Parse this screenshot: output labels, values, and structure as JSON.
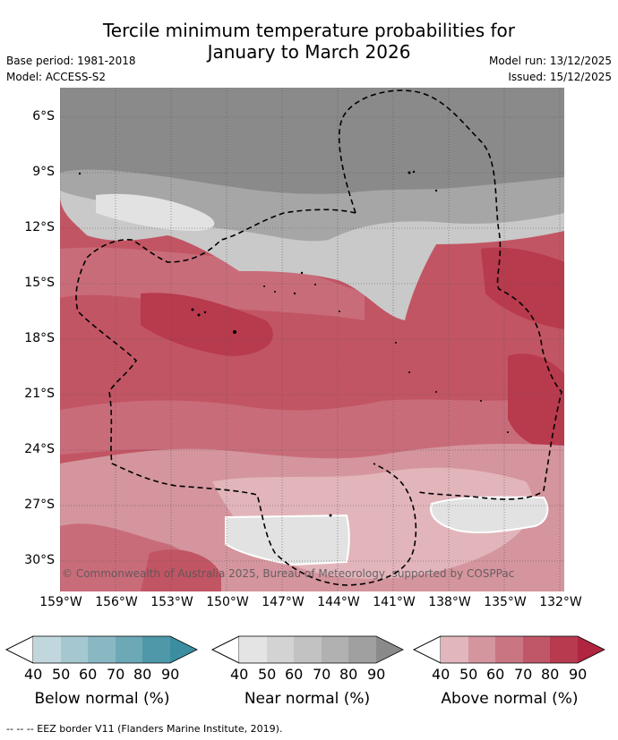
{
  "header": {
    "title_line1": "Tercile minimum temperature probabilities for",
    "title_line2": "January to March 2026",
    "base_period": "Base period: 1981-2018",
    "model": "Model: ACCESS-S2",
    "model_run": "Model run: 13/12/2025",
    "issued": "Issued: 15/12/2025"
  },
  "map": {
    "lat_labels": [
      "6°S",
      "9°S",
      "12°S",
      "15°S",
      "18°S",
      "21°S",
      "24°S",
      "27°S",
      "30°S"
    ],
    "lon_labels": [
      "159°W",
      "156°W",
      "153°W",
      "150°W",
      "147°W",
      "144°W",
      "141°W",
      "138°W",
      "135°W",
      "132°W"
    ],
    "credit": "© Commonwealth of Australia 2025, Bureau of Meteorology, supported by COSPPac",
    "colors": {
      "near_60": "#8a8a8a",
      "near_50": "#a6a6a6",
      "near_40": "#c9c9c9",
      "near_light": "#e2e2e2",
      "above_40": "#e2b5bb",
      "above_50": "#d4959e",
      "above_60": "#c96c7a",
      "above_70": "#c25563",
      "above_80": "#b83a4d"
    }
  },
  "colorbars": {
    "ticks": [
      "40",
      "50",
      "60",
      "70",
      "80",
      "90"
    ],
    "below": {
      "label": "Below normal (%)",
      "colors": [
        "#c1d7dd",
        "#a5c8d0",
        "#89b8c3",
        "#6ca8b6",
        "#4e98a9",
        "#3b8ea0"
      ]
    },
    "near": {
      "label": "Near normal (%)",
      "colors": [
        "#e4e4e4",
        "#d3d3d3",
        "#c2c2c2",
        "#b1b1b1",
        "#a0a0a0",
        "#8a8a8a"
      ]
    },
    "above": {
      "label": "Above normal (%)",
      "colors": [
        "#e1b6bc",
        "#d4959e",
        "#c97682",
        "#c05768",
        "#b73a4f",
        "#b02540"
      ]
    }
  },
  "footnote": "--  --  -- EEZ border V11 (Flanders Marine Institute, 2019)."
}
